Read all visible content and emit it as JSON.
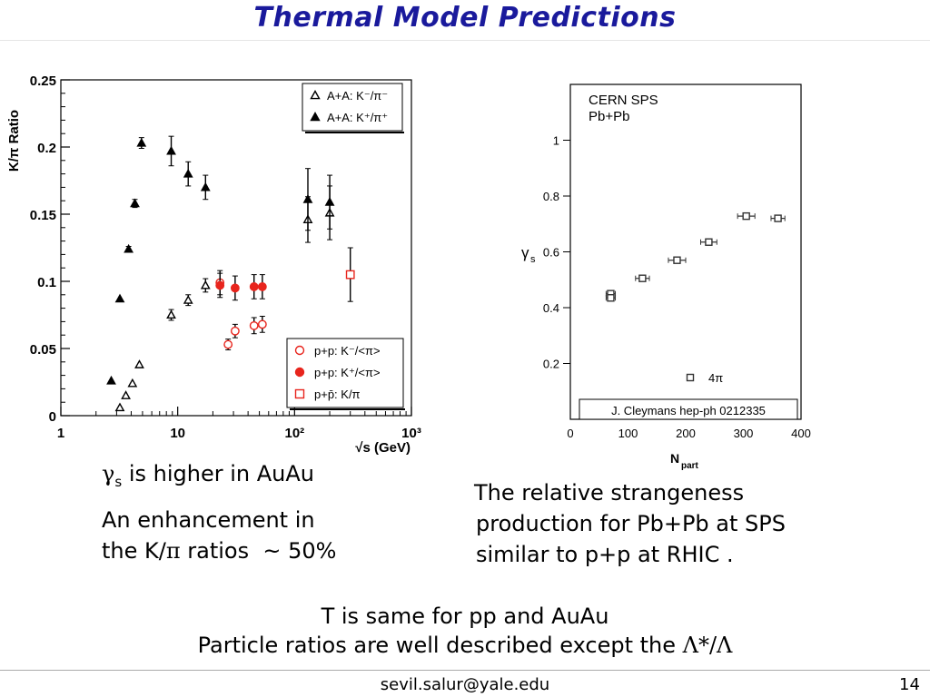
{
  "slide": {
    "title": "Thermal Model Predictions",
    "left_caption_1": "is higher in AuAu",
    "left_caption_1_symbol": "γ",
    "left_caption_1_sub": "s",
    "left_caption_2a": "An enhancement in",
    "left_caption_2b_pre": "the K/",
    "left_caption_2b_symbol": "π",
    "left_caption_2b_post": " ratios  ~ 50%",
    "right_caption_1": "The relative strangeness",
    "right_caption_2": "production for Pb+Pb at SPS",
    "right_caption_3": "similar to p+p at RHIC .",
    "bottom_1": "T is same for pp and AuAu",
    "bottom_2_pre": "Particle ratios are well described except the ",
    "bottom_2_symbol": "Λ*/Λ",
    "footer_email": "sevil.salur@yale.edu",
    "page_number": "14"
  },
  "chart_data": [
    {
      "type": "scatter",
      "ylabel": "K/π  Ratio",
      "xlabel": "√s   (GeV)",
      "xscale": "log",
      "xlim": [
        1,
        1000
      ],
      "ylim": [
        0,
        0.25
      ],
      "xticks": [
        "1",
        "10",
        "10²",
        "10³"
      ],
      "yticks": [
        "0",
        "0.05",
        "0.1",
        "0.15",
        "0.2",
        "0.25"
      ],
      "legend_top": [
        {
          "label": "A+A: K⁻/π⁻",
          "marker": "open-triangle"
        },
        {
          "label": "A+A: K⁺/π⁺",
          "marker": "filled-triangle"
        }
      ],
      "legend_bottom": [
        {
          "label": "p+p: K⁻/<π>",
          "marker": "open-circle"
        },
        {
          "label": "p+p: K⁺/<π>",
          "marker": "filled-circle"
        },
        {
          "label": "p+p̄: K/π",
          "marker": "open-square"
        }
      ],
      "series": [
        {
          "marker": "open-triangle",
          "color": "#000000",
          "points": [
            [
              3.2,
              0.006,
              0
            ],
            [
              3.6,
              0.015,
              0
            ],
            [
              4.1,
              0.024,
              0
            ],
            [
              4.7,
              0.038,
              0
            ],
            [
              8.8,
              0.075,
              0.004
            ],
            [
              12.3,
              0.086,
              0.004
            ],
            [
              17.3,
              0.097,
              0.005
            ],
            [
              130,
              0.146,
              0.017
            ],
            [
              200,
              0.151,
              0.02
            ]
          ]
        },
        {
          "marker": "filled-triangle",
          "color": "#000000",
          "points": [
            [
              2.7,
              0.026,
              0
            ],
            [
              3.2,
              0.087,
              0
            ],
            [
              3.8,
              0.124,
              0.002
            ],
            [
              4.3,
              0.158,
              0.003
            ],
            [
              4.9,
              0.203,
              0.004
            ],
            [
              8.8,
              0.197,
              0.011
            ],
            [
              12.3,
              0.18,
              0.009
            ],
            [
              17.3,
              0.17,
              0.009
            ],
            [
              130,
              0.161,
              0.023
            ],
            [
              200,
              0.159,
              0.02
            ]
          ]
        },
        {
          "marker": "open-circle",
          "color": "#e8251d",
          "points": [
            [
              23,
              0.099,
              0.009
            ],
            [
              27,
              0.053,
              0.004
            ],
            [
              31,
              0.063,
              0.005
            ],
            [
              45,
              0.067,
              0.006
            ],
            [
              53,
              0.068,
              0.006
            ]
          ]
        },
        {
          "marker": "filled-circle",
          "color": "#e8251d",
          "points": [
            [
              23,
              0.097,
              0.009
            ],
            [
              31,
              0.095,
              0.009
            ],
            [
              45,
              0.096,
              0.009
            ],
            [
              53,
              0.096,
              0.009
            ]
          ]
        },
        {
          "marker": "open-square",
          "color": "#e8251d",
          "points": [
            [
              300,
              0.105,
              0.02
            ]
          ]
        }
      ]
    },
    {
      "type": "scatter",
      "ylabel": "γs",
      "xlabel": "Npart",
      "xlim": [
        0,
        400
      ],
      "ylim": [
        0,
        1.2
      ],
      "xticks": [
        "0",
        "100",
        "200",
        "300",
        "400"
      ],
      "yticks": [
        "0.2",
        "0.4",
        "0.6",
        "0.8",
        "1"
      ],
      "annotation_1": "CERN SPS",
      "annotation_2": "Pb+Pb",
      "legend": [
        {
          "label": "4π",
          "marker": "open-square"
        }
      ],
      "citation": "J. Cleymans hep-ph 0212335",
      "series": [
        {
          "marker": "open-square",
          "color": "#333333",
          "points": [
            [
              70,
              0.45,
              0.01,
              8
            ],
            [
              70,
              0.435,
              0.01,
              8
            ],
            [
              125,
              0.505,
              0.01,
              12
            ],
            [
              185,
              0.57,
              0.01,
              15
            ],
            [
              240,
              0.635,
              0.01,
              14
            ],
            [
              305,
              0.728,
              0.01,
              15
            ],
            [
              360,
              0.72,
              0.01,
              12
            ]
          ]
        }
      ]
    }
  ]
}
